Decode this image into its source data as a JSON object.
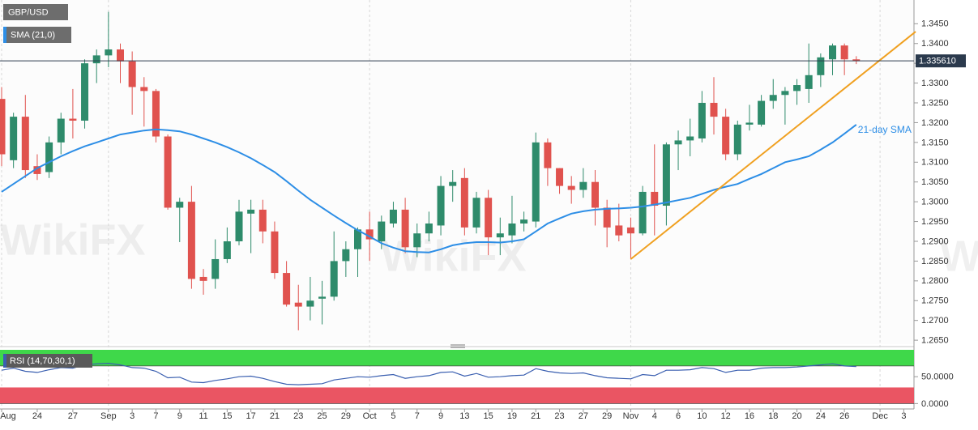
{
  "chart_data": [
    {
      "type": "candlestick",
      "title": "GBP/USD",
      "categories": [
        "Aug",
        null,
        null,
        "24",
        null,
        null,
        "27",
        null,
        null,
        "Sep",
        null,
        "3",
        null,
        "7",
        null,
        "9",
        null,
        "11",
        null,
        "15",
        null,
        "17",
        null,
        "21",
        null,
        "23",
        null,
        "25",
        null,
        "29",
        null,
        "Oct",
        null,
        "5",
        null,
        "7",
        null,
        "9",
        null,
        "13",
        null,
        "15",
        null,
        "19",
        null,
        "21",
        null,
        "23",
        null,
        "27",
        null,
        "29",
        null,
        "Nov",
        null,
        "4",
        null,
        "6",
        null,
        "10",
        null,
        "12",
        null,
        "16",
        null,
        "18",
        null,
        "20",
        null,
        "24",
        null,
        "26",
        null,
        null,
        "Dec",
        null,
        "3"
      ],
      "open": [
        1.326,
        1.3105,
        1.3215,
        1.309,
        1.3075,
        1.315,
        1.321,
        1.3205,
        1.335,
        1.337,
        1.3385,
        1.3355,
        1.329,
        1.328,
        1.3165,
        1.2985,
        1.3,
        1.281,
        1.2805,
        1.2855,
        1.29,
        1.297,
        1.298,
        1.2925,
        1.282,
        1.2745,
        1.2735,
        1.2755,
        1.276,
        1.285,
        1.288,
        1.293,
        1.29,
        1.2945,
        1.298,
        1.2885,
        1.292,
        1.294,
        1.304,
        1.306,
        1.2935,
        1.301,
        1.291,
        1.2915,
        1.2945,
        1.295,
        1.315,
        1.3085,
        1.304,
        1.303,
        1.305,
        1.2985,
        1.294,
        1.2935,
        1.292,
        1.3025,
        1.299,
        1.3145,
        1.3155,
        1.316,
        1.325,
        1.3215,
        1.312,
        1.3195,
        1.3195,
        1.3255,
        1.327,
        1.328,
        1.3285,
        1.332,
        1.336,
        1.3395,
        1.336,
        null,
        null,
        null,
        null
      ],
      "high": [
        1.329,
        1.3225,
        1.327,
        1.312,
        1.3165,
        1.3225,
        1.3285,
        1.336,
        1.3385,
        1.348,
        1.34,
        1.338,
        1.3315,
        1.3285,
        1.317,
        1.301,
        1.304,
        1.283,
        1.2905,
        1.2935,
        1.3005,
        1.3005,
        1.3005,
        1.295,
        1.285,
        1.279,
        1.281,
        1.28,
        1.2925,
        1.29,
        1.2935,
        1.2975,
        1.2965,
        1.3,
        1.301,
        1.2945,
        1.2975,
        1.3065,
        1.308,
        1.3085,
        1.3025,
        1.303,
        1.296,
        1.3015,
        1.2975,
        1.3175,
        1.316,
        1.3085,
        1.3065,
        1.3085,
        1.308,
        1.3005,
        1.2995,
        1.296,
        1.304,
        1.3145,
        1.315,
        1.318,
        1.321,
        1.328,
        1.3315,
        1.3235,
        1.3205,
        1.3245,
        1.327,
        1.331,
        1.329,
        1.331,
        1.34,
        1.3375,
        1.34,
        1.34,
        1.3368,
        null,
        null,
        null,
        null
      ],
      "low": [
        1.309,
        1.3085,
        1.306,
        1.3055,
        1.306,
        1.312,
        1.316,
        1.3185,
        1.33,
        1.334,
        1.33,
        1.322,
        1.319,
        1.315,
        1.298,
        1.2898,
        1.278,
        1.2765,
        1.278,
        1.2845,
        1.289,
        1.287,
        1.2895,
        1.2805,
        1.2735,
        1.2675,
        1.27,
        1.269,
        1.275,
        1.281,
        1.281,
        1.285,
        1.288,
        1.2935,
        1.287,
        1.286,
        1.29,
        1.2915,
        1.3,
        1.2915,
        1.292,
        1.2865,
        1.2865,
        1.2895,
        1.2925,
        1.2935,
        1.304,
        1.302,
        1.2995,
        1.301,
        1.294,
        1.2885,
        1.29,
        1.2855,
        1.2915,
        1.2915,
        1.294,
        1.308,
        1.3115,
        1.315,
        1.317,
        1.3105,
        1.3105,
        1.318,
        1.319,
        1.3235,
        1.3195,
        1.3245,
        1.325,
        1.329,
        1.332,
        1.332,
        1.3348,
        null,
        null,
        null,
        null
      ],
      "close": [
        1.312,
        1.3215,
        1.308,
        1.307,
        1.315,
        1.321,
        1.3205,
        1.335,
        1.337,
        1.3385,
        1.3355,
        1.329,
        1.328,
        1.3165,
        1.2985,
        1.3,
        1.2805,
        1.28,
        1.2855,
        1.29,
        1.2975,
        1.298,
        1.2925,
        1.282,
        1.274,
        1.2735,
        1.275,
        1.276,
        1.285,
        1.288,
        1.293,
        1.2905,
        1.295,
        1.298,
        1.2885,
        1.292,
        1.2945,
        1.304,
        1.305,
        1.2935,
        1.301,
        1.291,
        1.292,
        1.2945,
        1.2955,
        1.315,
        1.3085,
        1.304,
        1.303,
        1.305,
        1.2985,
        1.2935,
        1.2915,
        1.292,
        1.3025,
        1.299,
        1.3145,
        1.3155,
        1.3165,
        1.325,
        1.3215,
        1.312,
        1.3195,
        1.32,
        1.3255,
        1.327,
        1.328,
        1.3295,
        1.332,
        1.3365,
        1.3395,
        1.336,
        1.3356,
        null,
        null,
        null,
        null
      ],
      "up_color": "#2e8b6b",
      "down_color": "#e0524e",
      "series": [
        {
          "name": "SMA (21,0)",
          "color": "#2d8ee6",
          "values": [
            1.3025,
            1.3045,
            1.3065,
            1.3085,
            1.31,
            1.3115,
            1.3128,
            1.314,
            1.315,
            1.316,
            1.317,
            1.3175,
            1.318,
            1.3183,
            1.3181,
            1.3178,
            1.317,
            1.316,
            1.315,
            1.3138,
            1.3125,
            1.311,
            1.3093,
            1.3075,
            1.3052,
            1.3028,
            1.3005,
            1.2985,
            1.2965,
            1.2946,
            1.2928,
            1.2912,
            1.2895,
            1.2884,
            1.2875,
            1.2873,
            1.2872,
            1.288,
            1.289,
            1.2895,
            1.2898,
            1.2898,
            1.2897,
            1.29,
            1.2905,
            1.2925,
            1.2945,
            1.2958,
            1.297,
            1.2976,
            1.298,
            1.2982,
            1.2983,
            1.2985,
            1.2988,
            1.2993,
            1.2998,
            1.3004,
            1.301,
            1.302,
            1.303,
            1.3038,
            1.3045,
            1.3058,
            1.307,
            1.3085,
            1.31,
            1.3107,
            1.3115,
            1.3132,
            1.315,
            1.3172,
            1.3195,
            null,
            null,
            null,
            null
          ]
        }
      ],
      "annotation": "21-day SMA",
      "ylim": [
        1.264,
        1.351
      ],
      "yticks": [
        {
          "value": 1.265,
          "label": "1.2650"
        },
        {
          "value": 1.27,
          "label": "1.2700"
        },
        {
          "value": 1.275,
          "label": "1.2750"
        },
        {
          "value": 1.28,
          "label": "1.2800"
        },
        {
          "value": 1.285,
          "label": "1.2850"
        },
        {
          "value": 1.29,
          "label": "1.2900"
        },
        {
          "value": 1.295,
          "label": "1.2950"
        },
        {
          "value": 1.3,
          "label": "1.3000"
        },
        {
          "value": 1.305,
          "label": "1.3050"
        },
        {
          "value": 1.31,
          "label": "1.3100"
        },
        {
          "value": 1.315,
          "label": "1.3150"
        },
        {
          "value": 1.32,
          "label": "1.3200"
        },
        {
          "value": 1.325,
          "label": "1.3250"
        },
        {
          "value": 1.33,
          "label": "1.3300"
        },
        {
          "value": 1.335,
          "label": "1.3350"
        },
        {
          "value": 1.34,
          "label": "1.3400"
        },
        {
          "value": 1.345,
          "label": "1.3450"
        }
      ],
      "last_price": {
        "value": 1.33561,
        "label": "1.335610"
      },
      "trendline": {
        "x": [
          53,
          77
        ],
        "y": [
          1.2855,
          1.343
        ],
        "color": "#f0a020"
      },
      "watermark": "WikiFX"
    },
    {
      "type": "line",
      "title": "RSI (14,70,30,1)",
      "color": "#3a5fb0",
      "values": [
        62,
        66,
        60,
        58,
        63,
        67,
        66,
        72,
        74,
        75,
        72,
        67,
        66,
        60,
        48,
        49,
        40,
        39,
        43,
        46,
        50,
        51,
        47,
        41,
        36,
        35,
        36,
        37,
        44,
        47,
        50,
        49,
        52,
        54,
        47,
        50,
        52,
        58,
        59,
        51,
        56,
        49,
        50,
        52,
        53,
        65,
        60,
        57,
        56,
        57,
        52,
        48,
        47,
        46,
        54,
        52,
        62,
        62,
        63,
        67,
        65,
        58,
        62,
        62,
        66,
        67,
        67,
        68,
        70,
        72,
        74,
        70,
        69,
        null,
        null,
        null,
        null
      ],
      "ylim": [
        -10,
        100
      ],
      "yticks": [
        {
          "value": 50,
          "label": "50.0000"
        },
        {
          "value": 0,
          "label": "0.0000"
        }
      ],
      "bands": [
        {
          "from": 70,
          "to": 100,
          "color": "#3fd84a"
        },
        {
          "from": 0,
          "to": 30,
          "color": "#ea5563"
        }
      ]
    }
  ]
}
